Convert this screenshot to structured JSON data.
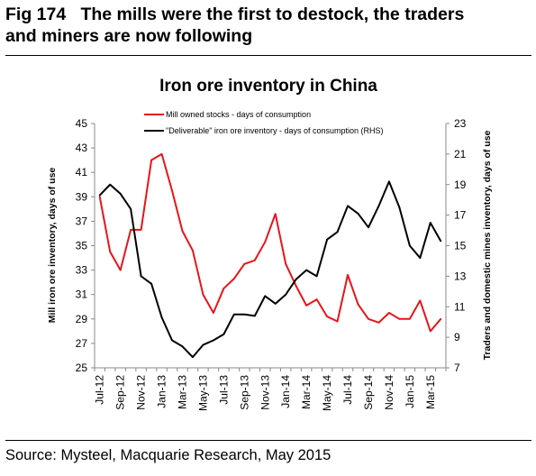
{
  "header": {
    "title_line1": "Fig 174   The mills were the first to destock, the traders",
    "title_line2": "and miners are now following"
  },
  "footer": {
    "source": "Source: Mysteel, Macquarie Research, May 2015"
  },
  "chart_data": {
    "type": "line",
    "title": "Iron ore inventory in China",
    "ylabel": "Mill iron ore inventory, days of use",
    "y2label": "Traders and domestic mines inventory, days of use",
    "ylim": [
      25,
      45
    ],
    "y2lim": [
      7,
      23
    ],
    "yticks": [
      25,
      27,
      29,
      31,
      33,
      35,
      37,
      39,
      41,
      43,
      45
    ],
    "y2ticks": [
      7,
      9,
      11,
      13,
      15,
      17,
      19,
      21,
      23
    ],
    "xtick_labels": [
      "Jul-12",
      "Sep-12",
      "Nov-12",
      "Jan-13",
      "Mar-13",
      "May-13",
      "Jul-13",
      "Sep-13",
      "Nov-13",
      "Jan-14",
      "Mar-14",
      "May-14",
      "Jul-14",
      "Sep-14",
      "Nov-14",
      "Jan-15",
      "Mar-15"
    ],
    "x": [
      "Jul-12",
      "Aug-12",
      "Sep-12",
      "Oct-12",
      "Nov-12",
      "Dec-12",
      "Jan-13",
      "Feb-13",
      "Mar-13",
      "Apr-13",
      "May-13",
      "Jun-13",
      "Jul-13",
      "Aug-13",
      "Sep-13",
      "Oct-13",
      "Nov-13",
      "Dec-13",
      "Jan-14",
      "Feb-14",
      "Mar-14",
      "Apr-14",
      "May-14",
      "Jun-14",
      "Jul-14",
      "Aug-14",
      "Sep-14",
      "Oct-14",
      "Nov-14",
      "Dec-14",
      "Jan-15",
      "Feb-15",
      "Mar-15",
      "Apr-15"
    ],
    "legend_position": "top-left",
    "grid": false,
    "series": [
      {
        "name": "Mill owned stocks - days of consumption",
        "axis": "left",
        "color": "#e8141b",
        "values": [
          39.0,
          34.5,
          33.0,
          36.3,
          36.3,
          42.0,
          42.5,
          39.5,
          36.2,
          34.6,
          31.0,
          29.5,
          31.5,
          32.3,
          33.5,
          33.8,
          35.3,
          37.6,
          33.5,
          31.7,
          30.1,
          30.6,
          29.2,
          28.8,
          32.6,
          30.2,
          29.0,
          28.7,
          29.5,
          29.0,
          29.0,
          30.5,
          28.0,
          29.0
        ]
      },
      {
        "name": "\"Deliverable\" iron ore inventory - days of consumption (RHS)",
        "axis": "right",
        "color": "#000000",
        "values": [
          18.3,
          19.0,
          18.4,
          17.4,
          13.0,
          12.5,
          10.3,
          8.8,
          8.4,
          7.7,
          8.5,
          8.8,
          9.2,
          10.5,
          10.5,
          10.4,
          11.7,
          11.2,
          11.8,
          12.8,
          13.4,
          13.0,
          15.4,
          15.9,
          17.6,
          17.1,
          16.2,
          17.6,
          19.2,
          17.5,
          15.0,
          14.2,
          16.5,
          15.3
        ]
      }
    ]
  }
}
